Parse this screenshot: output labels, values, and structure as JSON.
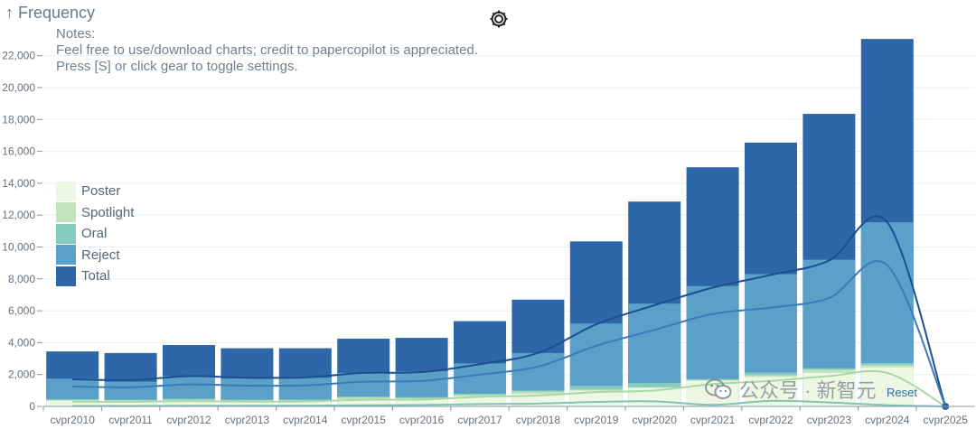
{
  "header": {
    "axis_arrow": "↑",
    "axis_title": "Frequency",
    "settings_icon": "gear-icon"
  },
  "notes": {
    "title": "Notes:",
    "line1": "Feel free to use/download charts; credit to papercopilot is appreciated.",
    "line2": "Press [S] or click gear to toggle settings."
  },
  "watermark": {
    "icon": "wechat-icon",
    "text": "公众号 · 新智元"
  },
  "reset_label": "Reset",
  "chart_data": {
    "type": "bar",
    "title": "",
    "xlabel": "",
    "ylabel": "Frequency",
    "ylim": [
      0,
      23000
    ],
    "y_ticks": [
      0,
      2000,
      4000,
      6000,
      8000,
      10000,
      12000,
      14000,
      16000,
      18000,
      20000,
      22000
    ],
    "y_tick_labels": [
      "0",
      "2,000",
      "4,000",
      "6,000",
      "8,000",
      "10,000",
      "12,000",
      "14,000",
      "16,000",
      "18,000",
      "20,000",
      "22,000"
    ],
    "grid": true,
    "legend_position": "left",
    "categories": [
      "cvpr2010",
      "cvpr2011",
      "cvpr2012",
      "cvpr2013",
      "cvpr2014",
      "cvpr2015",
      "cvpr2016",
      "cvpr2017",
      "cvpr2018",
      "cvpr2019",
      "cvpr2020",
      "cvpr2021",
      "cvpr2022",
      "cvpr2023",
      "cvpr2024",
      "cvpr2025"
    ],
    "series": [
      {
        "name": "Total",
        "color": "#2e67a9",
        "values": [
          3450,
          3350,
          3850,
          3650,
          3650,
          4250,
          4300,
          5350,
          6700,
          10350,
          12850,
          15000,
          16550,
          18350,
          23050,
          0
        ]
      },
      {
        "name": "Reject",
        "color": "#5ba0c8",
        "values": [
          1750,
          1550,
          1900,
          1750,
          1800,
          2100,
          2200,
          2700,
          3350,
          5200,
          6450,
          7550,
          8300,
          9200,
          11550,
          0
        ]
      },
      {
        "name": "Oral",
        "color": "#86cbbf",
        "values": [
          450,
          420,
          480,
          420,
          430,
          620,
          580,
          800,
          1000,
          1300,
          1470,
          1720,
          2120,
          2400,
          2720,
          0
        ]
      },
      {
        "name": "Spotlight",
        "color": "#c2e3bd",
        "values": [
          400,
          380,
          420,
          380,
          380,
          560,
          520,
          720,
          930,
          1050,
          1200,
          1650,
          1950,
          2300,
          2600,
          0
        ]
      },
      {
        "name": "Poster",
        "color": "#eef7e4",
        "values": [
          350,
          330,
          380,
          330,
          330,
          450,
          460,
          650,
          780,
          990,
          1170,
          1610,
          1850,
          2100,
          2450,
          0
        ]
      }
    ],
    "lines": [
      {
        "name": "Total",
        "color": "#1d4e8f",
        "values": [
          1700,
          1650,
          1900,
          1800,
          1820,
          2100,
          2150,
          2650,
          3350,
          5150,
          6350,
          7450,
          8250,
          9150,
          11550,
          0
        ]
      },
      {
        "name": "Reject",
        "color": "#3a7cb8",
        "values": [
          1250,
          1200,
          1380,
          1300,
          1320,
          1550,
          1600,
          2000,
          2500,
          3800,
          4800,
          5800,
          6200,
          6800,
          8850,
          0
        ]
      },
      {
        "name": "Poster",
        "color": "#a9d9a2",
        "values": [
          300,
          290,
          330,
          300,
          310,
          420,
          430,
          600,
          680,
          900,
          1000,
          1400,
          1600,
          1900,
          2100,
          0
        ]
      },
      {
        "name": "Oral",
        "color": "#7ec4b6",
        "values": [
          30,
          30,
          40,
          40,
          50,
          70,
          90,
          150,
          180,
          280,
          320,
          100,
          350,
          250,
          80,
          0
        ]
      }
    ]
  }
}
